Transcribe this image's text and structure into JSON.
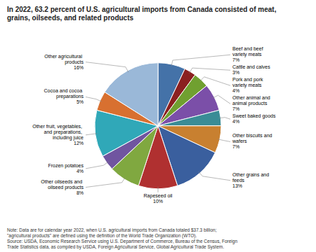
{
  "chart_data": {
    "type": "pie",
    "title": "In 2022, 63.2 percent of U.S. agricultural imports from Canada consisted of meat,\ngrains, oilseeds, and related products",
    "categories": [
      "Beef and beef\nvariety meats",
      "Cattle and calves",
      "Pork and pork\nvariety meats",
      "Other animal and\nanimal products",
      "Sweet baked goods",
      "Other biscuits and\nwafers",
      "Other grains and\nfeeds",
      "Rapeseed oil",
      "Other oilseeds and\noilseed products",
      "Frozen potatoes",
      "Other fruit, vegetables,\nand preparations,\nincluding juice",
      "Cocoa and cocoa\npreparations",
      "Other agricultural\nproducts"
    ],
    "values": [
      7,
      3,
      4,
      7,
      4,
      7,
      13,
      10,
      8,
      4,
      12,
      5,
      16
    ],
    "value_labels": [
      "7%",
      "3%",
      "4%",
      "7%",
      "4%",
      "7%",
      "13%",
      "10%",
      "8%",
      "4%",
      "12%",
      "5%",
      "16%"
    ],
    "colors": [
      "#4472a8",
      "#8b2020",
      "#70a030",
      "#7b4fa8",
      "#3a8c96",
      "#c88030",
      "#3a5f9e",
      "#b03030",
      "#80a840",
      "#7055a0",
      "#30a8b8",
      "#d87030",
      "#9ab8d8"
    ],
    "annotations": [
      "Note: Data are for calendar year 2022, when U.S. agricultural imports from Canada totaled $37.3 billion;",
      "\"agricultural products\" are defined using the definition of the World Trade Organization (WTO).",
      "Source: USDA, Economic Research Service using U.S. Department of Commerce, Bureau of the Census, Foreign",
      "Trade Statistics data, as compiled by USDA, Foreign Agricultural Service, Global Agricultural Trade System."
    ]
  }
}
